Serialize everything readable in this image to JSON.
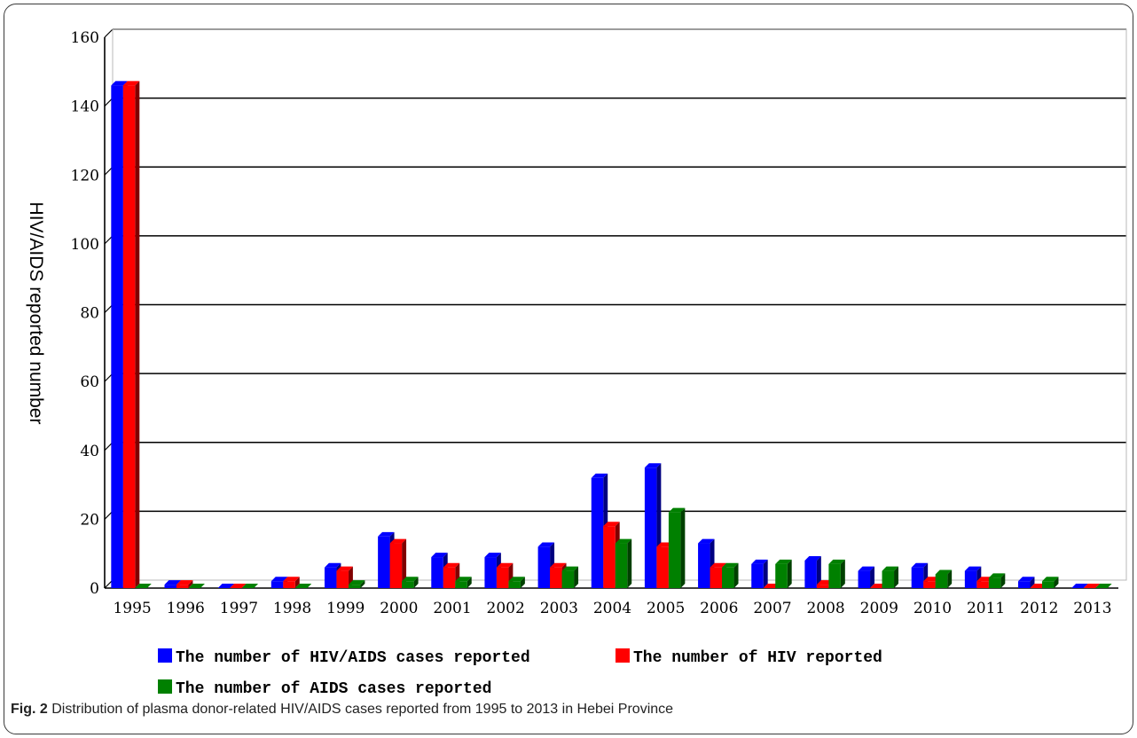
{
  "caption": {
    "label": "Fig. 2",
    "text": "Distribution of plasma donor-related HIV/AIDS cases reported from 1995 to 2013 in Hebei Province"
  },
  "chart_data": {
    "type": "bar",
    "title": "",
    "xlabel": "",
    "ylabel": "HIV/AIDS reported number",
    "ylim": [
      0,
      160
    ],
    "yticks": [
      "0",
      "20",
      "40",
      "60",
      "80",
      "100",
      "120",
      "140",
      "160"
    ],
    "grid": true,
    "categories": [
      "1995",
      "1996",
      "1997",
      "1998",
      "1999",
      "2000",
      "2001",
      "2002",
      "2003",
      "2004",
      "2005",
      "2006",
      "2007",
      "2008",
      "2009",
      "2010",
      "2011",
      "2012",
      "2013"
    ],
    "series": [
      {
        "name": "The number of HIV/AIDS cases reported",
        "color": "#0000ff",
        "side_color": "#000080",
        "values": [
          146,
          1,
          0,
          2,
          6,
          15,
          9,
          9,
          12,
          32,
          35,
          13,
          7,
          8,
          5,
          6,
          5,
          2,
          0
        ]
      },
      {
        "name": "The number of HIV reported",
        "color": "#ff0000",
        "side_color": "#800000",
        "values": [
          146,
          1,
          0,
          2,
          5,
          13,
          6,
          6,
          6,
          18,
          12,
          6,
          0,
          1,
          0,
          2,
          2,
          0,
          0
        ]
      },
      {
        "name": "The number of AIDS cases reported",
        "color": "#008000",
        "side_color": "#004000",
        "values": [
          0,
          0,
          0,
          0,
          1,
          2,
          2,
          2,
          5,
          13,
          22,
          6,
          7,
          7,
          5,
          4,
          3,
          2,
          0
        ]
      }
    ],
    "legend_position": "bottom"
  }
}
